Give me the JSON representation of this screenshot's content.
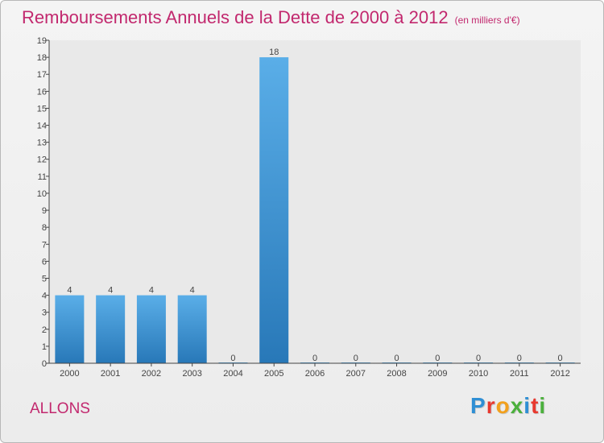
{
  "title": "Remboursements Annuels de la Dette de 2000 à 2012",
  "unit": "(en milliers d'€)",
  "town": "ALLONS",
  "brand": {
    "text": "Proxiti",
    "letters": [
      "P",
      "r",
      "o",
      "x",
      "i",
      "t",
      "i"
    ],
    "colors": [
      "#2f8fd4",
      "#e8392f",
      "#f2a01c",
      "#4bb03c",
      "#2f8fd4",
      "#e8392f",
      "#4bb03c"
    ]
  },
  "colors": {
    "title": "#c2286e",
    "bar_light": "#5aaee8",
    "bar_dark": "#2878b8",
    "axis": "#444444"
  },
  "chart_data": {
    "type": "bar",
    "title": "Remboursements Annuels de la Dette de 2000 à 2012",
    "ylabel": "",
    "xlabel": "",
    "categories": [
      "2000",
      "2001",
      "2002",
      "2003",
      "2004",
      "2005",
      "2006",
      "2007",
      "2008",
      "2009",
      "2010",
      "2011",
      "2012"
    ],
    "values": [
      4,
      4,
      4,
      4,
      0,
      18,
      0,
      0,
      0,
      0,
      0,
      0,
      0
    ],
    "ylim": [
      0,
      19
    ],
    "yticks": [
      0,
      1,
      2,
      3,
      4,
      5,
      6,
      7,
      8,
      9,
      10,
      11,
      12,
      13,
      14,
      15,
      16,
      17,
      18,
      19
    ],
    "grid": false,
    "legend": "none"
  }
}
